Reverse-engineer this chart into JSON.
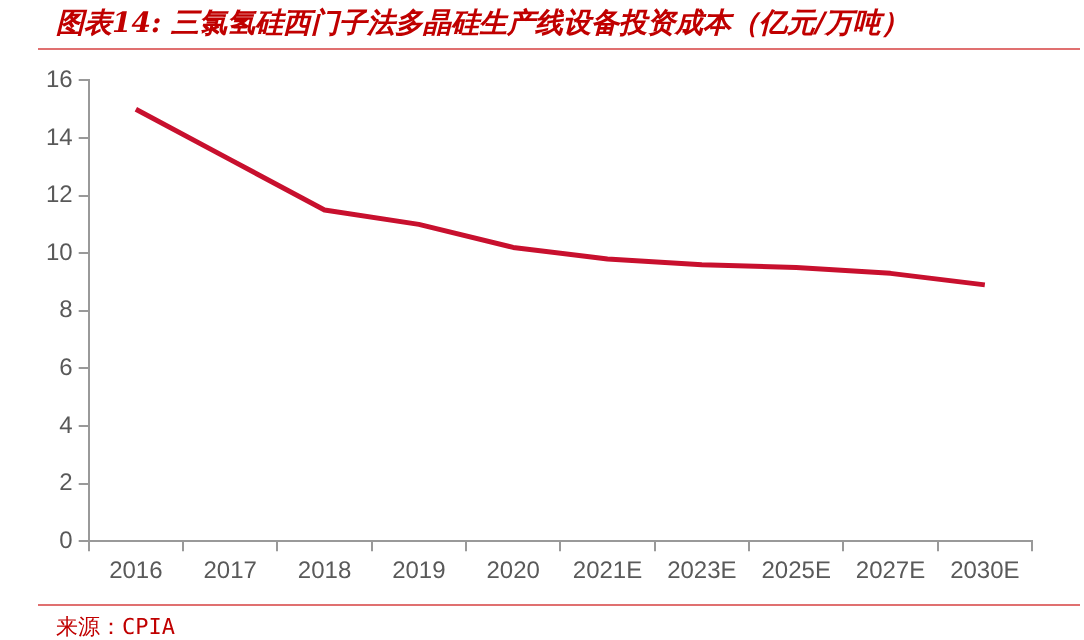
{
  "chart_data": {
    "type": "line",
    "title": "图表14: 三氯氢硅西门子法多晶硅生产线设备投资成本（亿元/万吨）",
    "categories": [
      "2016",
      "2017",
      "2018",
      "2019",
      "2020",
      "2021E",
      "2023E",
      "2025E",
      "2027E",
      "2030E"
    ],
    "series": [
      {
        "color": "#c8102e",
        "values": [
          15,
          13.25,
          11.5,
          11,
          10.2,
          9.8,
          9.6,
          9.5,
          9.3,
          8.9
        ]
      }
    ],
    "ylim": [
      0,
      16
    ],
    "yticks": [
      0,
      2,
      4,
      6,
      8,
      10,
      12,
      14,
      16
    ],
    "grid": false,
    "legend": false,
    "marker": "none",
    "line_style": "solid",
    "annotations": [
      "来源：CPIA"
    ]
  }
}
